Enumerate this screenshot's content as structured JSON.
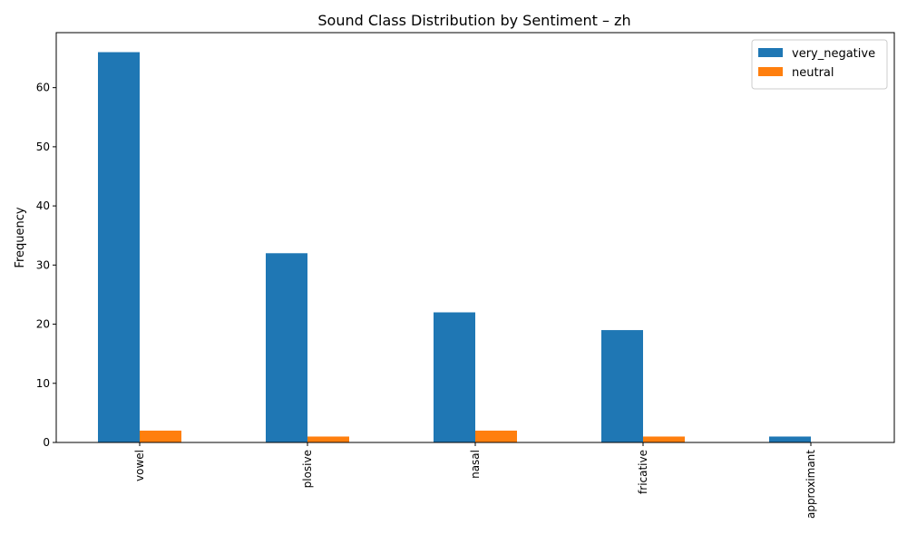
{
  "chart_data": {
    "type": "bar",
    "title": "Sound Class Distribution by Sentiment – zh",
    "xlabel": "",
    "ylabel": "Frequency",
    "categories": [
      "vowel",
      "plosive",
      "nasal",
      "fricative",
      "approximant"
    ],
    "series": [
      {
        "name": "very_negative",
        "values": [
          66,
          32,
          22,
          19,
          1
        ],
        "color": "#1f77b4"
      },
      {
        "name": "neutral",
        "values": [
          2,
          1,
          2,
          1,
          0
        ],
        "color": "#ff7f0e"
      }
    ],
    "ylim": [
      0,
      69.3
    ],
    "yticks": [
      0,
      10,
      20,
      30,
      40,
      50,
      60
    ],
    "grid": false,
    "legend_position": "top-right"
  }
}
